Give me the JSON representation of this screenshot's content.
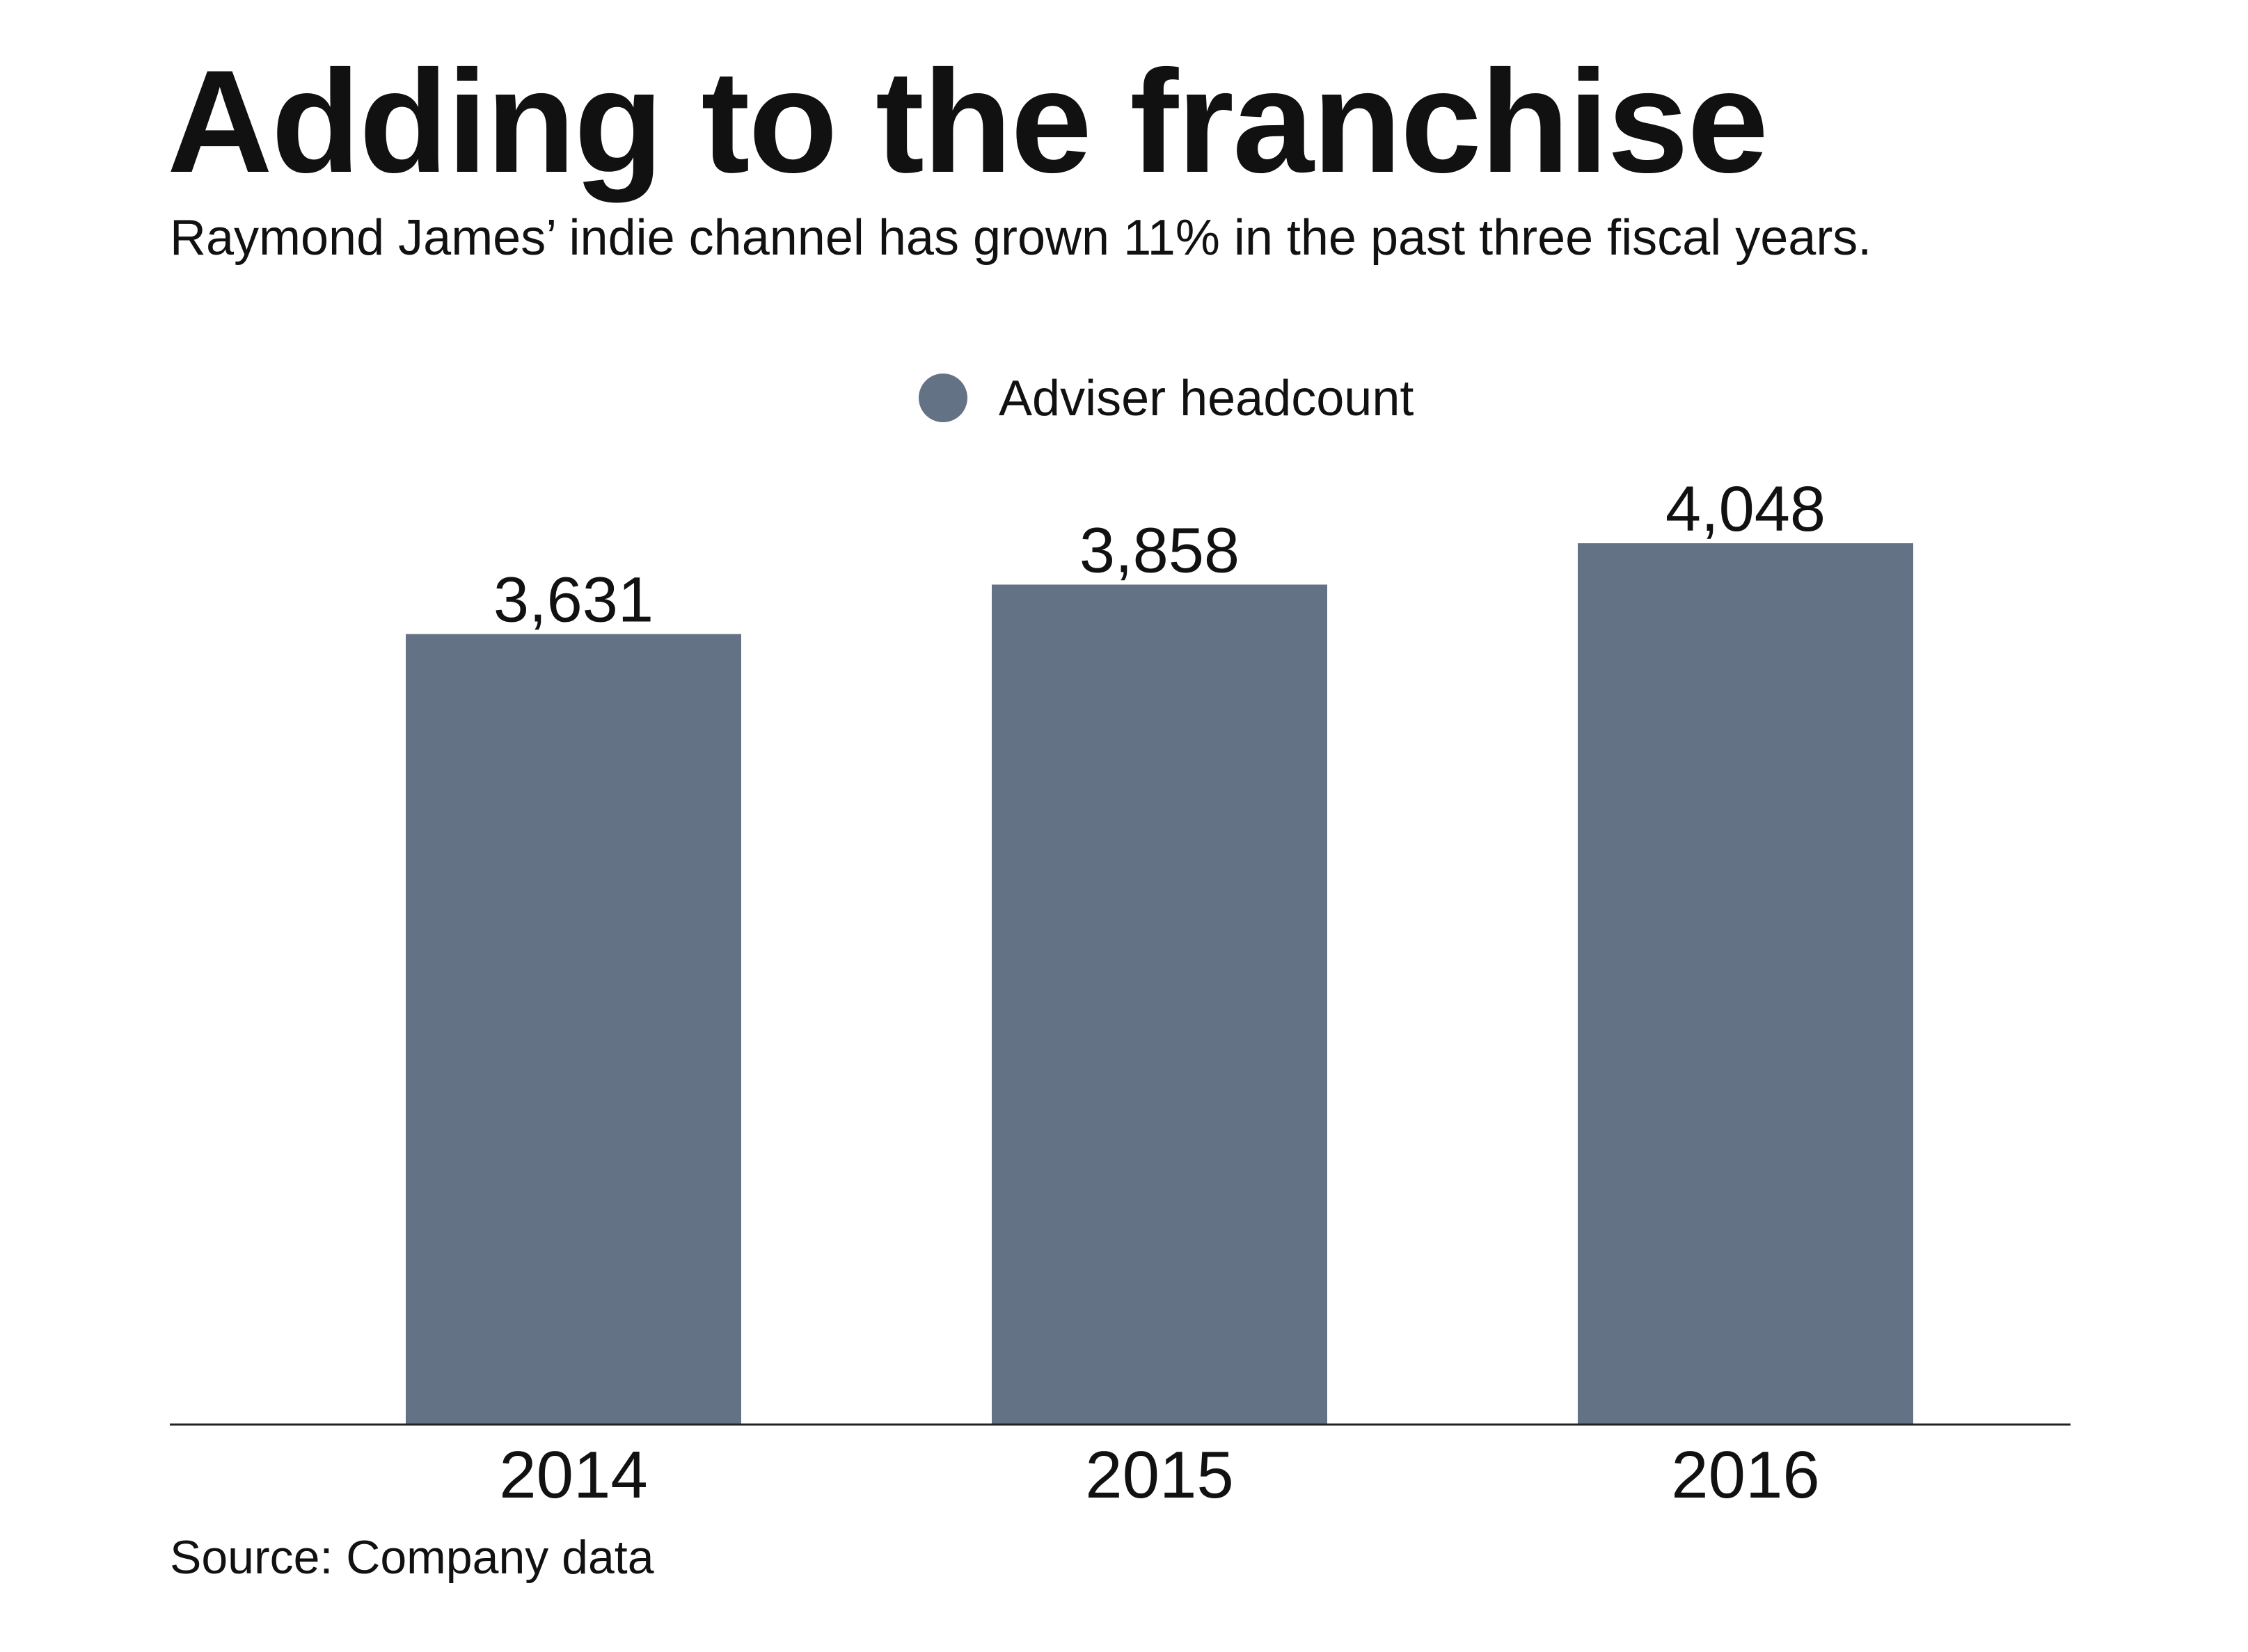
{
  "header": {
    "title": "Adding to the franchise",
    "subtitle": "Raymond James’ indie channel has grown 11% in the past three fiscal years."
  },
  "footer": {
    "source": "Source: Company data"
  },
  "colors": {
    "bar": "#647286",
    "axis": "#222222",
    "text": "#111111"
  },
  "chart_data": {
    "type": "bar",
    "categories": [
      "2014",
      "2015",
      "2016"
    ],
    "series": [
      {
        "name": "Adviser headcount",
        "values": [
          3631,
          3858,
          4048
        ],
        "labels": [
          "3,631",
          "3,858",
          "4,048"
        ]
      }
    ],
    "legend_position": "top-center",
    "grid": false,
    "ylim": [
      0,
      4048
    ]
  }
}
